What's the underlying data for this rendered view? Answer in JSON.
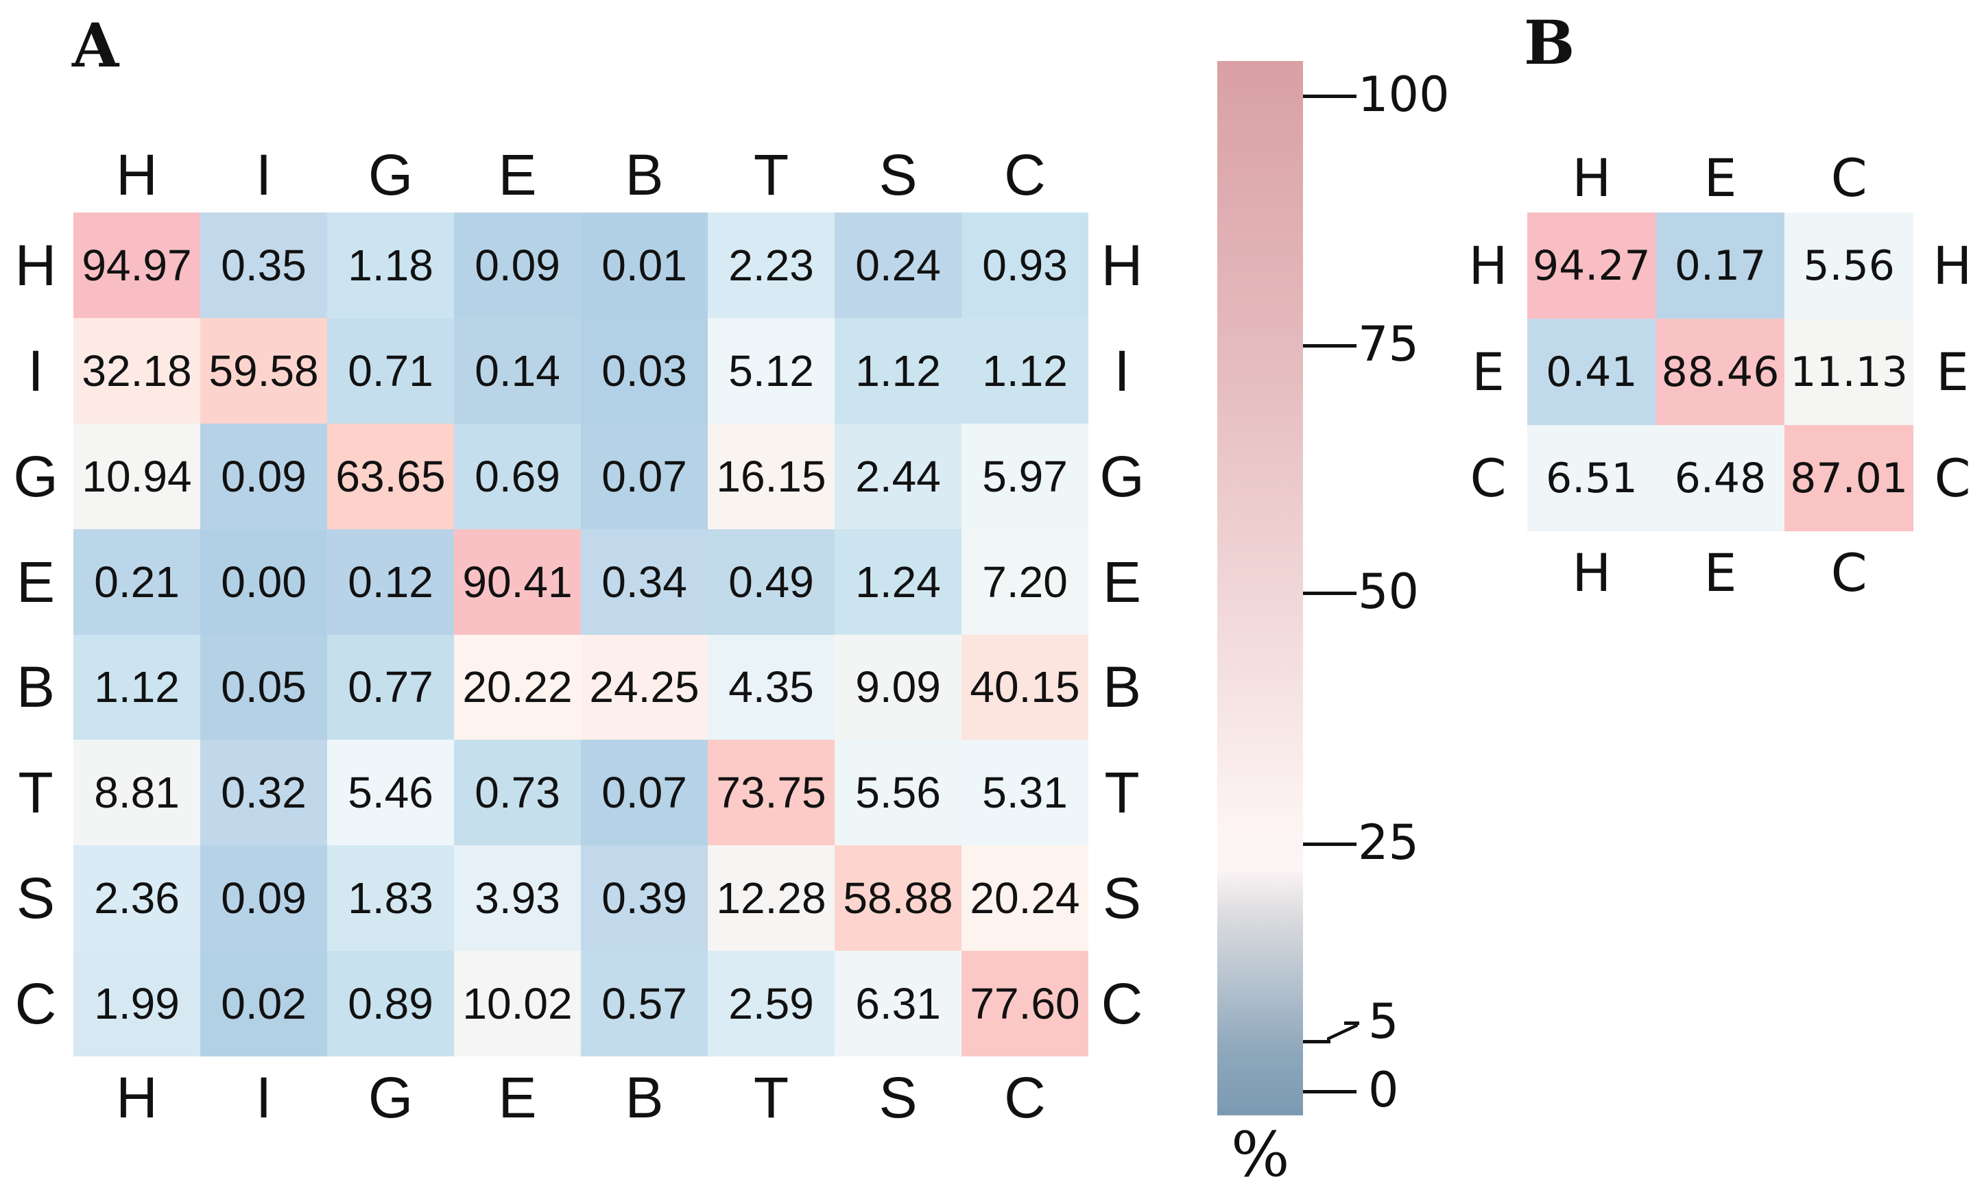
{
  "chart_data": [
    {
      "type": "heatmap",
      "panel": "A",
      "rows": [
        "H",
        "I",
        "G",
        "E",
        "B",
        "T",
        "S",
        "C"
      ],
      "cols": [
        "H",
        "I",
        "G",
        "E",
        "B",
        "T",
        "S",
        "C"
      ],
      "values": [
        [
          "94.97",
          "0.35",
          "1.18",
          "0.09",
          "0.01",
          "2.23",
          "0.24",
          "0.93"
        ],
        [
          "32.18",
          "59.58",
          "0.71",
          "0.14",
          "0.03",
          "5.12",
          "1.12",
          "1.12"
        ],
        [
          "10.94",
          "0.09",
          "63.65",
          "0.69",
          "0.07",
          "16.15",
          "2.44",
          "5.97"
        ],
        [
          "0.21",
          "0.00",
          "0.12",
          "90.41",
          "0.34",
          "0.49",
          "1.24",
          "7.20"
        ],
        [
          "1.12",
          "0.05",
          "0.77",
          "20.22",
          "24.25",
          "4.35",
          "9.09",
          "40.15"
        ],
        [
          "8.81",
          "0.32",
          "5.46",
          "0.73",
          "0.07",
          "73.75",
          "5.56",
          "5.31"
        ],
        [
          "2.36",
          "0.09",
          "1.83",
          "3.93",
          "0.39",
          "12.28",
          "58.88",
          "20.24"
        ],
        [
          "1.99",
          "0.02",
          "0.89",
          "10.02",
          "0.57",
          "2.59",
          "6.31",
          "77.60"
        ]
      ]
    },
    {
      "type": "heatmap",
      "panel": "B",
      "rows": [
        "H",
        "E",
        "C"
      ],
      "cols": [
        "H",
        "E",
        "C"
      ],
      "values": [
        [
          "94.27",
          "0.17",
          "5.56"
        ],
        [
          "0.41",
          "88.46",
          "11.13"
        ],
        [
          "6.51",
          "6.48",
          "87.01"
        ]
      ]
    }
  ],
  "colorbar": {
    "label": "%",
    "ticks": [
      "100",
      "75",
      "50",
      "25",
      "5",
      "0"
    ],
    "range": [
      0,
      100
    ]
  }
}
